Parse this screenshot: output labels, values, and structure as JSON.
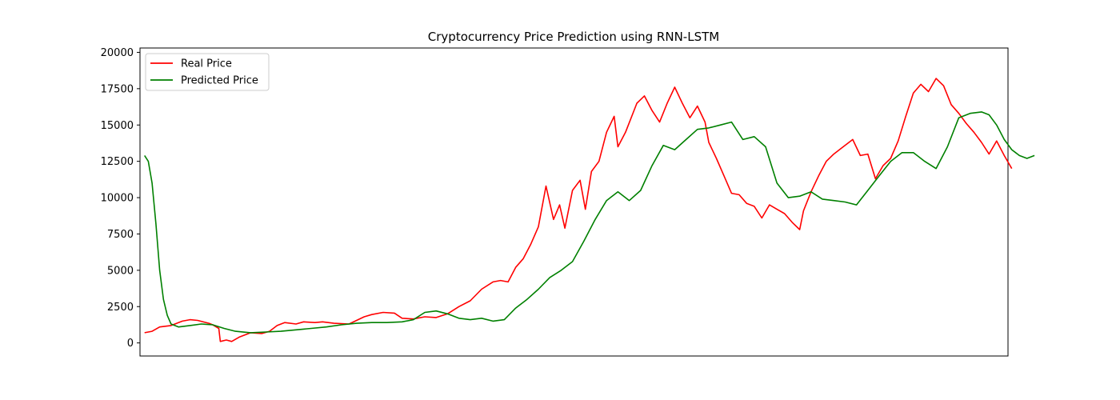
{
  "chart_data": {
    "type": "line",
    "title": "Cryptocurrency Price Prediction using RNN-LSTM",
    "xlabel": "",
    "ylabel": "",
    "xlim": [
      -6,
      1140
    ],
    "ylim": [
      -900,
      20300
    ],
    "yticks": [
      0,
      2500,
      5000,
      7500,
      10000,
      12500,
      15000,
      17500,
      20000
    ],
    "grid": false,
    "legend_position": "top-left",
    "series": [
      {
        "name": "Real Price",
        "color": "#ff0000",
        "points": [
          [
            0,
            700
          ],
          [
            10,
            800
          ],
          [
            20,
            1100
          ],
          [
            35,
            1200
          ],
          [
            50,
            1500
          ],
          [
            60,
            1600
          ],
          [
            70,
            1550
          ],
          [
            85,
            1350
          ],
          [
            90,
            1250
          ],
          [
            98,
            1000
          ],
          [
            100,
            100
          ],
          [
            108,
            200
          ],
          [
            115,
            100
          ],
          [
            125,
            400
          ],
          [
            135,
            600
          ],
          [
            140,
            700
          ],
          [
            155,
            650
          ],
          [
            165,
            800
          ],
          [
            175,
            1200
          ],
          [
            185,
            1400
          ],
          [
            200,
            1300
          ],
          [
            210,
            1450
          ],
          [
            225,
            1400
          ],
          [
            235,
            1450
          ],
          [
            250,
            1350
          ],
          [
            270,
            1300
          ],
          [
            290,
            1800
          ],
          [
            300,
            1950
          ],
          [
            315,
            2100
          ],
          [
            330,
            2050
          ],
          [
            340,
            1700
          ],
          [
            355,
            1650
          ],
          [
            370,
            1800
          ],
          [
            385,
            1750
          ],
          [
            400,
            2000
          ],
          [
            415,
            2500
          ],
          [
            430,
            2900
          ],
          [
            445,
            3700
          ],
          [
            460,
            4200
          ],
          [
            470,
            4300
          ],
          [
            480,
            4200
          ],
          [
            490,
            5200
          ],
          [
            500,
            5800
          ],
          [
            510,
            6800
          ],
          [
            520,
            8000
          ],
          [
            530,
            10800
          ],
          [
            540,
            8500
          ],
          [
            548,
            9500
          ],
          [
            555,
            7900
          ],
          [
            565,
            10500
          ],
          [
            575,
            11200
          ],
          [
            582,
            9200
          ],
          [
            590,
            11800
          ],
          [
            600,
            12500
          ],
          [
            610,
            14500
          ],
          [
            620,
            15600
          ],
          [
            625,
            13500
          ],
          [
            635,
            14500
          ],
          [
            650,
            16500
          ],
          [
            660,
            17000
          ],
          [
            670,
            16000
          ],
          [
            680,
            15200
          ],
          [
            690,
            16500
          ],
          [
            700,
            17600
          ],
          [
            710,
            16500
          ],
          [
            720,
            15500
          ],
          [
            730,
            16300
          ],
          [
            740,
            15200
          ],
          [
            745,
            13800
          ],
          [
            755,
            12700
          ],
          [
            765,
            11500
          ],
          [
            775,
            10300
          ],
          [
            785,
            10200
          ],
          [
            795,
            9600
          ],
          [
            805,
            9400
          ],
          [
            815,
            8600
          ],
          [
            825,
            9500
          ],
          [
            835,
            9200
          ],
          [
            845,
            8900
          ],
          [
            855,
            8300
          ],
          [
            865,
            7800
          ],
          [
            870,
            9100
          ],
          [
            880,
            10400
          ],
          [
            890,
            11500
          ],
          [
            900,
            12500
          ],
          [
            910,
            13000
          ],
          [
            920,
            13400
          ],
          [
            935,
            14000
          ],
          [
            945,
            12900
          ],
          [
            955,
            13000
          ],
          [
            965,
            11300
          ],
          [
            975,
            12200
          ],
          [
            985,
            12700
          ],
          [
            995,
            13900
          ],
          [
            1005,
            15600
          ],
          [
            1015,
            17200
          ],
          [
            1025,
            17800
          ],
          [
            1035,
            17300
          ],
          [
            1045,
            18200
          ],
          [
            1055,
            17700
          ],
          [
            1065,
            16400
          ],
          [
            1075,
            15800
          ],
          [
            1085,
            15100
          ],
          [
            1095,
            14500
          ],
          [
            1105,
            13800
          ],
          [
            1115,
            13000
          ],
          [
            1125,
            13900
          ],
          [
            1135,
            12900
          ],
          [
            1145,
            12000
          ]
        ]
      },
      {
        "name": "Predicted Price",
        "color": "#008000",
        "points": [
          [
            0,
            12900
          ],
          [
            5,
            12500
          ],
          [
            10,
            11000
          ],
          [
            15,
            8200
          ],
          [
            20,
            5000
          ],
          [
            25,
            3000
          ],
          [
            30,
            1900
          ],
          [
            35,
            1300
          ],
          [
            45,
            1100
          ],
          [
            60,
            1200
          ],
          [
            75,
            1300
          ],
          [
            90,
            1250
          ],
          [
            105,
            1000
          ],
          [
            120,
            800
          ],
          [
            140,
            700
          ],
          [
            160,
            750
          ],
          [
            180,
            800
          ],
          [
            200,
            900
          ],
          [
            220,
            1000
          ],
          [
            240,
            1100
          ],
          [
            260,
            1250
          ],
          [
            280,
            1350
          ],
          [
            300,
            1400
          ],
          [
            320,
            1400
          ],
          [
            340,
            1450
          ],
          [
            355,
            1600
          ],
          [
            370,
            2100
          ],
          [
            385,
            2200
          ],
          [
            400,
            2000
          ],
          [
            415,
            1700
          ],
          [
            430,
            1600
          ],
          [
            445,
            1700
          ],
          [
            460,
            1500
          ],
          [
            475,
            1600
          ],
          [
            490,
            2400
          ],
          [
            505,
            3000
          ],
          [
            520,
            3700
          ],
          [
            535,
            4500
          ],
          [
            550,
            5000
          ],
          [
            565,
            5600
          ],
          [
            580,
            7000
          ],
          [
            595,
            8500
          ],
          [
            610,
            9800
          ],
          [
            625,
            10400
          ],
          [
            640,
            9800
          ],
          [
            655,
            10500
          ],
          [
            670,
            12200
          ],
          [
            685,
            13600
          ],
          [
            700,
            13300
          ],
          [
            715,
            14000
          ],
          [
            730,
            14700
          ],
          [
            745,
            14800
          ],
          [
            760,
            15000
          ],
          [
            775,
            15200
          ],
          [
            790,
            14000
          ],
          [
            805,
            14200
          ],
          [
            820,
            13500
          ],
          [
            835,
            11000
          ],
          [
            850,
            10000
          ],
          [
            865,
            10100
          ],
          [
            880,
            10400
          ],
          [
            895,
            9900
          ],
          [
            910,
            9800
          ],
          [
            925,
            9700
          ],
          [
            940,
            9500
          ],
          [
            955,
            10500
          ],
          [
            970,
            11500
          ],
          [
            985,
            12500
          ],
          [
            1000,
            13100
          ],
          [
            1015,
            13100
          ],
          [
            1030,
            12500
          ],
          [
            1045,
            12000
          ],
          [
            1060,
            13500
          ],
          [
            1075,
            15500
          ],
          [
            1090,
            15800
          ],
          [
            1105,
            15900
          ],
          [
            1115,
            15700
          ],
          [
            1125,
            15000
          ],
          [
            1135,
            14000
          ],
          [
            1145,
            13300
          ],
          [
            1155,
            12900
          ],
          [
            1165,
            12700
          ],
          [
            1175,
            12900
          ]
        ]
      }
    ]
  }
}
